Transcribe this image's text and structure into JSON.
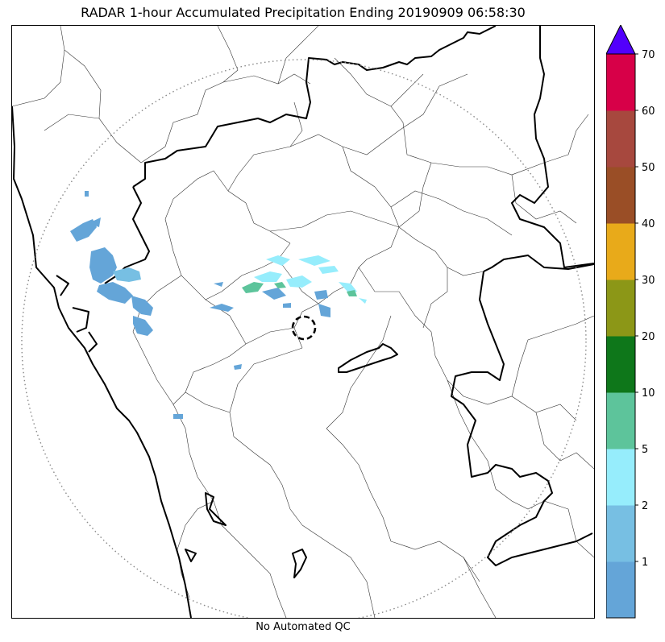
{
  "title": "RADAR 1-hour Accumulated Precipitation Ending 20190909 06:58:30",
  "footer": "No Automated QC",
  "colorbar": {
    "bins": [
      {
        "lower": 0,
        "upper": 1,
        "color": "#64a5d8"
      },
      {
        "lower": 1,
        "upper": 2,
        "color": "#77bfe3"
      },
      {
        "lower": 2,
        "upper": 5,
        "color": "#96edfc"
      },
      {
        "lower": 5,
        "upper": 10,
        "color": "#5dc49b"
      },
      {
        "lower": 10,
        "upper": 20,
        "color": "#0e771a"
      },
      {
        "lower": 20,
        "upper": 30,
        "color": "#8c9717"
      },
      {
        "lower": 30,
        "upper": 40,
        "color": "#e8aa1a"
      },
      {
        "lower": 40,
        "upper": 50,
        "color": "#9a4e26"
      },
      {
        "lower": 50,
        "upper": 60,
        "color": "#a7483e"
      },
      {
        "lower": 60,
        "upper": 70,
        "color": "#d70048"
      }
    ],
    "tick_labels": [
      "1",
      "2",
      "5",
      "10",
      "20",
      "30",
      "40",
      "50",
      "60",
      "70"
    ],
    "extend_max_color": "#5200fc"
  },
  "map": {
    "range_ring": "dotted",
    "radar_site_marker": "dashed-circle",
    "precip_color_light": "#64a5d8",
    "precip_color_cyan": "#96edfc",
    "precip_color_green": "#5dc49b"
  }
}
